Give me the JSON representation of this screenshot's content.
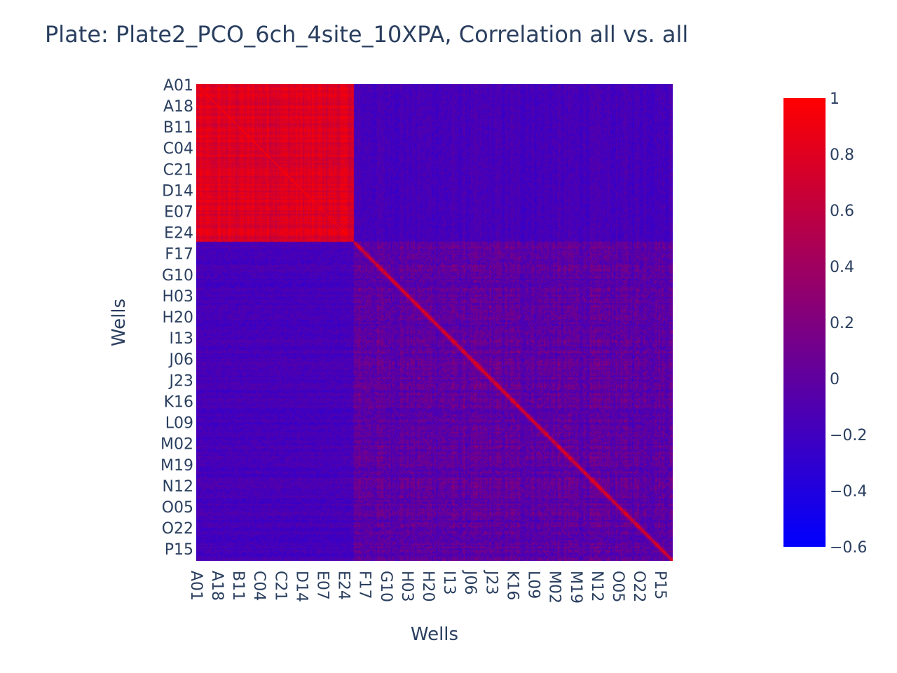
{
  "chart_data": {
    "type": "heatmap",
    "title": "Plate: Plate2_PCO_6ch_4site_10XPA, Correlation all vs. all",
    "xlabel": "Wells",
    "ylabel": "Wells",
    "tick_labels": [
      "A01",
      "A18",
      "B11",
      "C04",
      "C21",
      "D14",
      "E07",
      "E24",
      "F17",
      "G10",
      "H03",
      "H20",
      "I13",
      "J06",
      "J23",
      "K16",
      "L09",
      "M02",
      "M19",
      "N12",
      "O05",
      "O22",
      "P15"
    ],
    "n_wells": 384,
    "tick_step": 17,
    "high_correlation_block_end": "F07",
    "zrange": [
      -0.6,
      1
    ],
    "colorscale": [
      [
        "-0.6",
        "#0000ff"
      ],
      [
        "1",
        "#ff0000"
      ]
    ],
    "colorbar_ticks": [
      {
        "value": 1,
        "label": "1"
      },
      {
        "value": 0.8,
        "label": "0.8"
      },
      {
        "value": 0.6,
        "label": "0.6"
      },
      {
        "value": 0.4,
        "label": "0.4"
      },
      {
        "value": 0.2,
        "label": "0.2"
      },
      {
        "value": 0,
        "label": "0"
      },
      {
        "value": -0.2,
        "label": "−0.2"
      },
      {
        "value": -0.4,
        "label": "−0.4"
      },
      {
        "value": -0.6,
        "label": "−0.6"
      }
    ],
    "diagonal_value": 1
  }
}
